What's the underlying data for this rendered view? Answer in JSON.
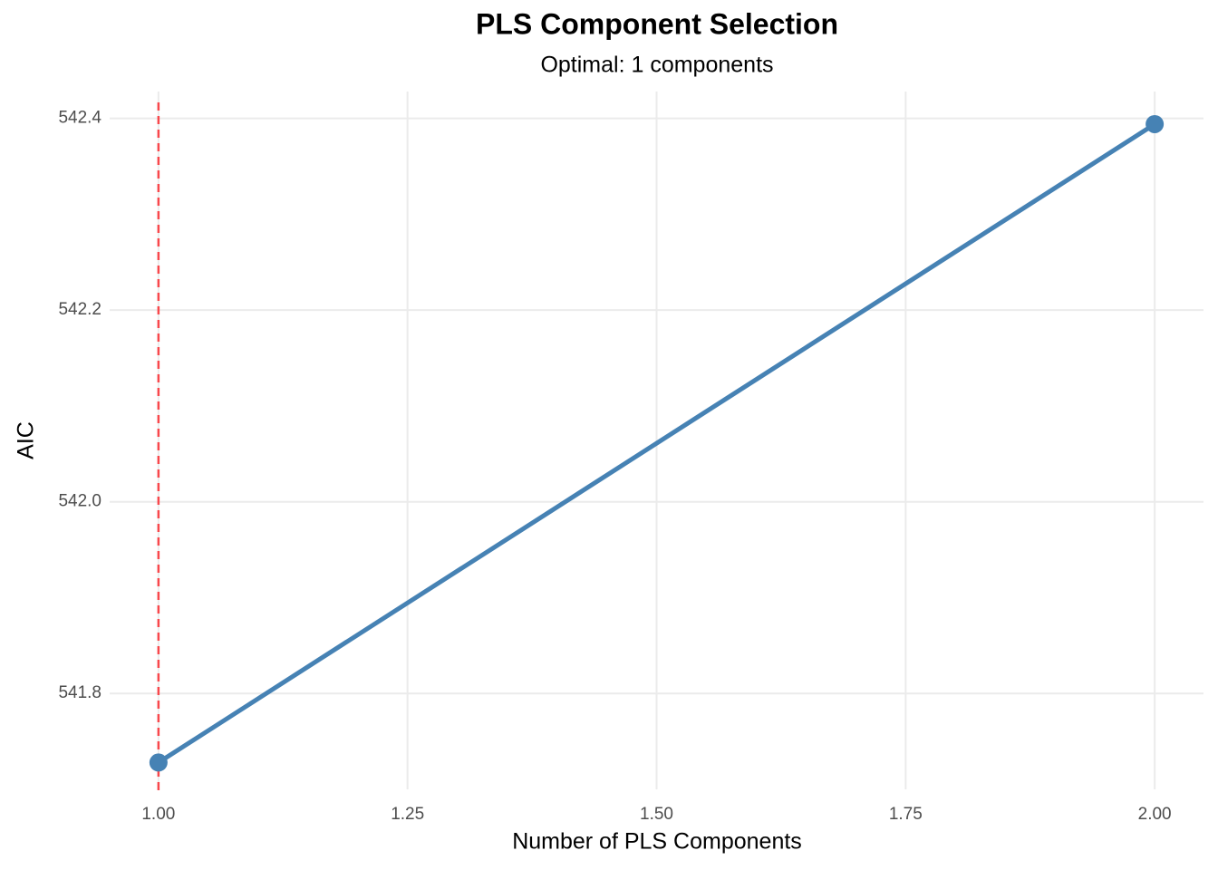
{
  "chart_data": {
    "type": "line",
    "title": "PLS Component Selection",
    "subtitle": "Optimal: 1 components",
    "x_label": "Number of PLS Components",
    "y_label": "AIC",
    "x": [
      1,
      2
    ],
    "series": [
      {
        "name": "AIC",
        "color": "#4682b4",
        "values": [
          541.728,
          542.394
        ]
      }
    ],
    "xlim": [
      0.951,
      2.049
    ],
    "xticks": [
      {
        "value": 1,
        "label": "1.00"
      },
      1.25,
      {
        "value": 1.5,
        "label": "1.50"
      },
      1.75,
      {
        "value": 2,
        "label": "2.00"
      }
    ],
    "ylim": [
      541.7,
      542.428
    ],
    "yticks": [
      541.8,
      {
        "value": 542,
        "label": "542.0"
      },
      542.2,
      542.4
    ],
    "grid": true,
    "vline": {
      "x": 1,
      "color": "#f8484c"
    }
  }
}
